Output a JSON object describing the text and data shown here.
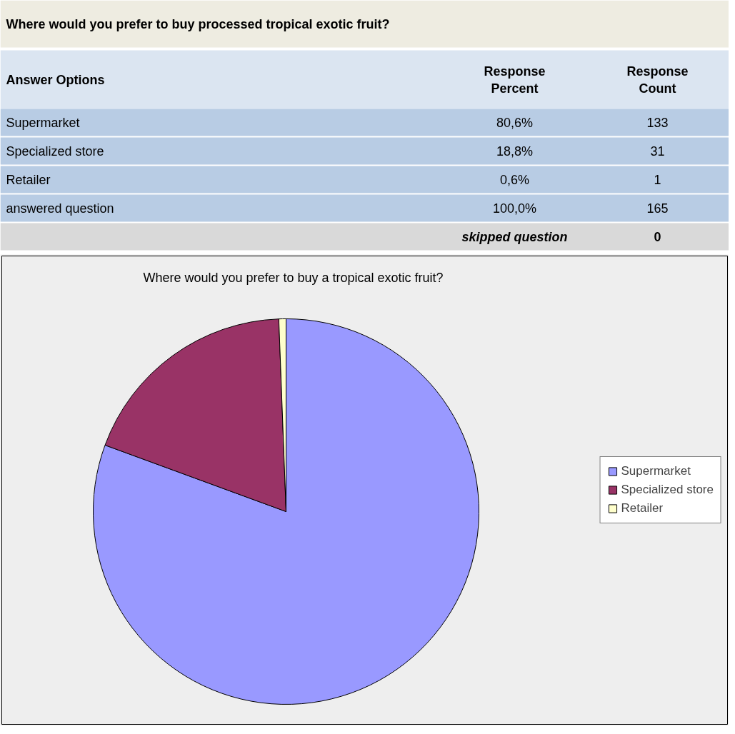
{
  "chart_data": [
    {
      "type": "other",
      "title": "Where would you prefer to buy processed tropical exotic fruit?",
      "annotations": [
        "Answer Options",
        "Response Percent",
        "Response Count",
        "Supermarket",
        "80,6%",
        "133",
        "Specialized store",
        "18,8%",
        "31",
        "Retailer",
        "0,6%",
        "1",
        "answered question",
        "100,0%",
        "165",
        "skipped question",
        "0"
      ]
    },
    {
      "type": "pie",
      "title": "Where would you prefer to buy a tropical exotic fruit?",
      "categories": [
        "Supermarket",
        "Specialized store",
        "Retailer"
      ],
      "values": [
        80.6,
        18.8,
        0.6
      ],
      "colors": [
        "#9999ff",
        "#993366",
        "#ffffcc"
      ],
      "legend": "right"
    }
  ]
}
